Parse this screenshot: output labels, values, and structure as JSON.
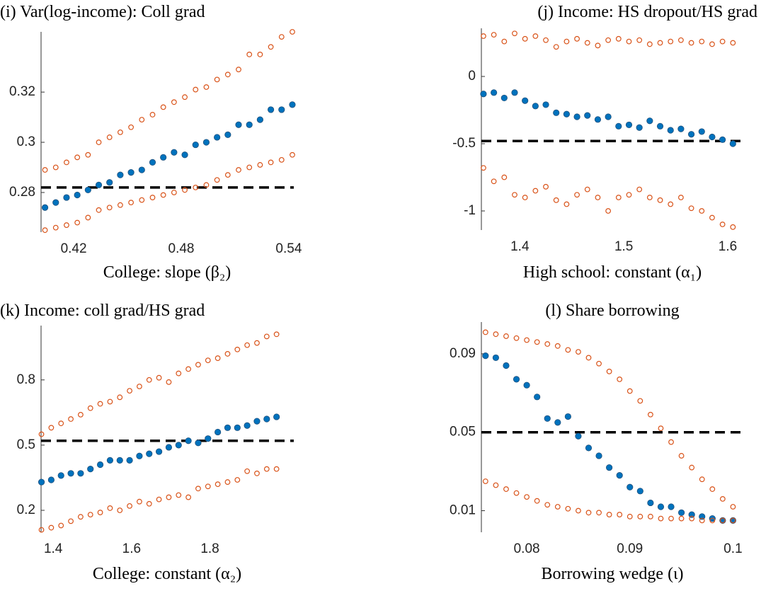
{
  "chart_data": [
    {
      "type": "scatter",
      "title": "(i) Var(log-income): Coll grad",
      "x_label": "College: slope (β₂)",
      "x": [
        0.404,
        0.41,
        0.416,
        0.422,
        0.428,
        0.434,
        0.44,
        0.446,
        0.452,
        0.458,
        0.464,
        0.47,
        0.476,
        0.482,
        0.488,
        0.494,
        0.5,
        0.506,
        0.512,
        0.518,
        0.524,
        0.53,
        0.536,
        0.542
      ],
      "series": [
        {
          "color": "#0072BD",
          "marker": "filled",
          "values": [
            0.274,
            0.276,
            0.278,
            0.279,
            0.281,
            0.283,
            0.284,
            0.287,
            0.288,
            0.289,
            0.292,
            0.294,
            0.296,
            0.295,
            0.299,
            0.3,
            0.302,
            0.303,
            0.307,
            0.307,
            0.309,
            0.313,
            0.313,
            0.315
          ]
        },
        {
          "color": "#D95319",
          "marker": "open",
          "values": [
            0.289,
            0.29,
            0.292,
            0.294,
            0.295,
            0.3,
            0.302,
            0.304,
            0.306,
            0.309,
            0.311,
            0.314,
            0.316,
            0.318,
            0.321,
            0.322,
            0.325,
            0.327,
            0.329,
            0.335,
            0.335,
            0.338,
            0.342,
            0.344
          ]
        },
        {
          "color": "#D95319",
          "marker": "open",
          "values": [
            0.265,
            0.266,
            0.267,
            0.268,
            0.27,
            0.273,
            0.274,
            0.275,
            0.276,
            0.277,
            0.278,
            0.279,
            0.28,
            0.281,
            0.282,
            0.283,
            0.285,
            0.287,
            0.289,
            0.29,
            0.291,
            0.292,
            0.293,
            0.295
          ]
        }
      ],
      "target": 0.282,
      "target_color": "#000000",
      "xlim": [
        0.4018,
        0.5428
      ],
      "xticks": [
        0.42,
        0.48,
        0.54
      ],
      "ylim": [
        0.2642,
        0.344
      ],
      "yticks": [
        0.28,
        0.3,
        0.32
      ]
    },
    {
      "type": "scatter",
      "title": "(j) Income: HS dropout/HS grad",
      "x_label": "High school: constant (α₁)",
      "x": [
        1.365,
        1.375,
        1.385,
        1.395,
        1.405,
        1.415,
        1.425,
        1.435,
        1.445,
        1.455,
        1.465,
        1.475,
        1.485,
        1.495,
        1.505,
        1.515,
        1.525,
        1.535,
        1.545,
        1.555,
        1.565,
        1.575,
        1.585,
        1.595,
        1.605
      ],
      "series": [
        {
          "color": "#0072BD",
          "marker": "filled",
          "values": [
            -0.13,
            -0.12,
            -0.16,
            -0.12,
            -0.18,
            -0.22,
            -0.21,
            -0.27,
            -0.28,
            -0.3,
            -0.29,
            -0.32,
            -0.3,
            -0.37,
            -0.36,
            -0.38,
            -0.33,
            -0.37,
            -0.4,
            -0.39,
            -0.43,
            -0.41,
            -0.45,
            -0.47,
            -0.5
          ]
        },
        {
          "color": "#D95319",
          "marker": "open",
          "values": [
            0.3,
            0.31,
            0.26,
            0.32,
            0.28,
            0.3,
            0.27,
            0.22,
            0.26,
            0.28,
            0.25,
            0.23,
            0.27,
            0.28,
            0.26,
            0.27,
            0.24,
            0.25,
            0.26,
            0.27,
            0.25,
            0.26,
            0.24,
            0.26,
            0.25
          ]
        },
        {
          "color": "#D95319",
          "marker": "open",
          "values": [
            -0.68,
            -0.78,
            -0.75,
            -0.88,
            -0.9,
            -0.85,
            -0.82,
            -0.92,
            -0.95,
            -0.88,
            -0.84,
            -0.9,
            -1.0,
            -0.9,
            -0.88,
            -0.84,
            -0.9,
            -0.92,
            -0.95,
            -0.9,
            -0.98,
            -1.0,
            -1.05,
            -1.1,
            -1.12
          ]
        }
      ],
      "target": -0.48,
      "target_color": "#000000",
      "xlim": [
        1.363,
        1.615
      ],
      "xticks": [
        1.4,
        1.5,
        1.6
      ],
      "ylim": [
        -1.142,
        0.358
      ],
      "yticks": [
        -1,
        -0.5,
        0
      ]
    },
    {
      "type": "scatter",
      "title": "(k) Income: coll grad/HS grad",
      "x_label": "College: constant (α₂)",
      "x": [
        1.37,
        1.395,
        1.42,
        1.445,
        1.47,
        1.495,
        1.52,
        1.545,
        1.57,
        1.595,
        1.62,
        1.645,
        1.67,
        1.695,
        1.72,
        1.745,
        1.77,
        1.795,
        1.82,
        1.845,
        1.87,
        1.895,
        1.92,
        1.945,
        1.97
      ],
      "series": [
        {
          "color": "#0072BD",
          "marker": "filled",
          "values": [
            0.33,
            0.34,
            0.36,
            0.37,
            0.37,
            0.39,
            0.41,
            0.43,
            0.43,
            0.43,
            0.45,
            0.46,
            0.47,
            0.49,
            0.5,
            0.52,
            0.51,
            0.53,
            0.56,
            0.58,
            0.58,
            0.59,
            0.61,
            0.62,
            0.63
          ]
        },
        {
          "color": "#D95319",
          "marker": "open",
          "values": [
            0.55,
            0.58,
            0.6,
            0.62,
            0.64,
            0.67,
            0.69,
            0.7,
            0.72,
            0.75,
            0.77,
            0.8,
            0.81,
            0.79,
            0.83,
            0.85,
            0.87,
            0.89,
            0.9,
            0.92,
            0.94,
            0.96,
            0.97,
            1.0,
            1.01
          ]
        },
        {
          "color": "#D95319",
          "marker": "open",
          "values": [
            0.11,
            0.12,
            0.13,
            0.15,
            0.17,
            0.18,
            0.19,
            0.21,
            0.2,
            0.22,
            0.24,
            0.23,
            0.25,
            0.26,
            0.27,
            0.26,
            0.3,
            0.31,
            0.32,
            0.33,
            0.34,
            0.38,
            0.37,
            0.39,
            0.39
          ]
        }
      ],
      "target": 0.52,
      "target_color": "#000000",
      "xlim": [
        1.369,
        2.014
      ],
      "xticks": [
        1.4,
        1.6,
        1.8
      ],
      "ylim": [
        0.099,
        1.05
      ],
      "yticks": [
        0.2,
        0.5,
        0.8
      ]
    },
    {
      "type": "scatter",
      "title": "(l) Share borrowing",
      "x_label": "Borrowing wedge (ι)",
      "x": [
        0.076,
        0.077,
        0.078,
        0.079,
        0.08,
        0.081,
        0.082,
        0.083,
        0.084,
        0.085,
        0.086,
        0.087,
        0.088,
        0.089,
        0.09,
        0.091,
        0.092,
        0.093,
        0.094,
        0.095,
        0.096,
        0.097,
        0.098,
        0.099,
        0.1
      ],
      "series": [
        {
          "color": "#0072BD",
          "marker": "filled",
          "values": [
            0.089,
            0.088,
            0.084,
            0.077,
            0.074,
            0.068,
            0.057,
            0.055,
            0.058,
            0.048,
            0.042,
            0.038,
            0.032,
            0.028,
            0.022,
            0.02,
            0.014,
            0.012,
            0.012,
            0.009,
            0.008,
            0.007,
            0.006,
            0.005,
            0.005
          ]
        },
        {
          "color": "#D95319",
          "marker": "open",
          "values": [
            0.101,
            0.1,
            0.099,
            0.098,
            0.097,
            0.096,
            0.095,
            0.094,
            0.092,
            0.091,
            0.088,
            0.085,
            0.081,
            0.077,
            0.071,
            0.066,
            0.059,
            0.052,
            0.045,
            0.038,
            0.032,
            0.026,
            0.021,
            0.016,
            0.012
          ]
        },
        {
          "color": "#D95319",
          "marker": "open",
          "values": [
            0.025,
            0.023,
            0.021,
            0.019,
            0.017,
            0.015,
            0.013,
            0.012,
            0.011,
            0.01,
            0.009,
            0.009,
            0.008,
            0.008,
            0.007,
            0.007,
            0.007,
            0.006,
            0.006,
            0.006,
            0.006,
            0.005,
            0.005,
            0.005,
            0.005
          ]
        }
      ],
      "target": 0.05,
      "target_color": "#000000",
      "xlim": [
        0.0756,
        0.101
      ],
      "xticks": [
        0.08,
        0.09,
        0.1
      ],
      "ylim": [
        -0.001,
        0.1062
      ],
      "yticks": [
        0.01,
        0.05,
        0.09
      ]
    }
  ]
}
